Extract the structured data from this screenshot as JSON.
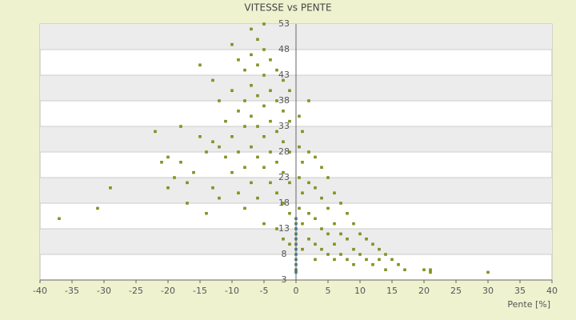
{
  "chart_data": {
    "type": "scatter",
    "title": "VITESSE vs PENTE",
    "x_label": "Pente [%]",
    "xlim": [
      -40,
      40
    ],
    "xticks": [
      -40,
      -35,
      -30,
      -25,
      -20,
      -15,
      -10,
      -5,
      0,
      5,
      10,
      15,
      20,
      25,
      30,
      35,
      40
    ],
    "ylim": [
      3,
      53
    ],
    "yticks": [
      3,
      8,
      13,
      18,
      23,
      28,
      33,
      38,
      43,
      48,
      53
    ],
    "grid": true,
    "series": [
      {
        "color": "#8a9a10",
        "x": [
          -37,
          -31,
          -29,
          -22,
          -21,
          -20,
          -20,
          -19,
          -18,
          -18,
          -17,
          -17,
          -16,
          -15,
          -15,
          -14,
          -14,
          -13,
          -13,
          -13,
          -12,
          -12,
          -12,
          -11,
          -11,
          -10,
          -10,
          -10,
          -10,
          -9,
          -9,
          -9,
          -9,
          -8,
          -8,
          -8,
          -8,
          -8,
          -7,
          -7,
          -7,
          -7,
          -7,
          -7,
          -6,
          -6,
          -6,
          -6,
          -6,
          -6,
          -5,
          -5,
          -5,
          -5,
          -5,
          -5,
          -5,
          -4,
          -4,
          -4,
          -4,
          -4,
          -3,
          -3,
          -3,
          -3,
          -3,
          -3,
          -2,
          -2,
          -2,
          -2,
          -2,
          -2,
          -1,
          -1,
          -1,
          -1,
          -1,
          -1,
          0.5,
          0.5,
          0.5,
          0.5,
          1,
          1,
          1,
          1,
          1,
          2,
          2,
          2,
          2,
          2,
          3,
          3,
          3,
          3,
          3,
          4,
          4,
          4,
          4,
          5,
          5,
          5,
          5,
          6,
          6,
          6,
          6,
          7,
          7,
          7,
          8,
          8,
          8,
          9,
          9,
          9,
          10,
          10,
          11,
          11,
          12,
          12,
          13,
          13,
          14,
          14,
          15,
          16,
          17,
          20,
          21,
          21,
          30
        ],
        "y": [
          15,
          17,
          21,
          32,
          26,
          27,
          21,
          23,
          26,
          33,
          22,
          18,
          24,
          45,
          31,
          28,
          16,
          42,
          30,
          21,
          38,
          29,
          19,
          34,
          27,
          49,
          40,
          31,
          24,
          46,
          36,
          28,
          20,
          44,
          38,
          33,
          25,
          17,
          52,
          47,
          41,
          35,
          29,
          22,
          50,
          45,
          39,
          33,
          27,
          19,
          53,
          48,
          43,
          37,
          31,
          25,
          14,
          46,
          40,
          34,
          28,
          22,
          44,
          38,
          32,
          26,
          20,
          13,
          42,
          36,
          30,
          24,
          18,
          11,
          40,
          34,
          28,
          22,
          16,
          10,
          35,
          29,
          23,
          17,
          32,
          26,
          20,
          14,
          9,
          38,
          28,
          22,
          16,
          11,
          27,
          21,
          15,
          10,
          7,
          25,
          19,
          13,
          9,
          23,
          17,
          12,
          8,
          20,
          14,
          10,
          7,
          18,
          12,
          8,
          16,
          11,
          7,
          14,
          9,
          6,
          12,
          8,
          11,
          7,
          10,
          6,
          9,
          7,
          5,
          8,
          7,
          6,
          5,
          5,
          4.5,
          5,
          4.5
        ]
      },
      {
        "color": "#3a7ab0",
        "x": [
          0,
          0,
          0,
          0,
          0,
          0,
          0,
          0,
          0,
          0,
          0,
          0
        ],
        "y": [
          4.5,
          5,
          6,
          7,
          8,
          9,
          10,
          11,
          12,
          13,
          14,
          15
        ]
      }
    ]
  }
}
